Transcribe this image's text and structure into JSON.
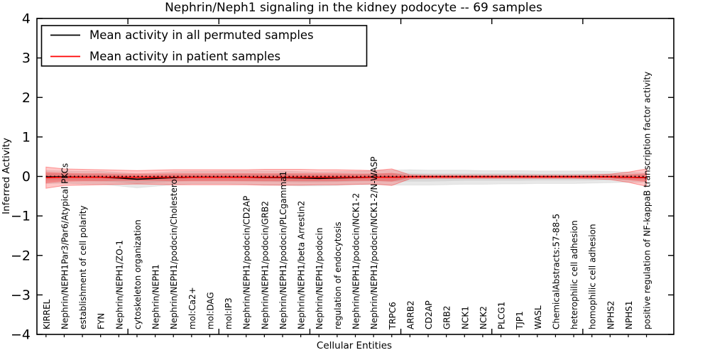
{
  "chart_data": {
    "type": "line",
    "title": "Nephrin/Neph1 signaling in the kidney podocyte -- 69 samples",
    "xlabel": "Cellular Entities",
    "ylabel": "Inferred Activity",
    "ylim": [
      -4,
      4
    ],
    "yticks": [
      -4,
      -3,
      -2,
      -1,
      0,
      1,
      2,
      3,
      4
    ],
    "xlim": [
      0,
      35
    ],
    "xticks_major": [
      5,
      10,
      15,
      20,
      25,
      30
    ],
    "grid": false,
    "legend_position": "upper left",
    "categories": [
      "KIRREL",
      "Nephrin/NEPH1Par3/Par6/Atypical PKCs",
      "establishment of cell polarity",
      "FYN",
      "Nephrin/NEPH1/ZO-1",
      "cytoskeleton organization",
      "Nephrin/NEPH1",
      "Nephrin/NEPH1/podocin/Cholesterol",
      "mol:Ca2+",
      "mol:DAG",
      "mol:IP3",
      "Nephrin/NEPH1/podocin/CD2AP",
      "Nephrin/NEPH1/podocin/GRB2",
      "Nephrin/NEPH1/podocin/PLCgamma1",
      "Nephrin/NEPH1/beta Arrestin2",
      "Nephrin/NEPH1/podocin",
      "regulation of endocytosis",
      "Nephrin/NEPH1/podocin/NCK1-2",
      "Nephrin/NEPH1/podocin/NCK1-2/N-WASP",
      "TRPC6",
      "ARRB2",
      "CD2AP",
      "GRB2",
      "NCK1",
      "NCK2",
      "PLCG1",
      "TJP1",
      "WASL",
      "ChemicalAbstracts:57-88-5",
      "heterophilic cell adhesion",
      "homophilic cell adhesion",
      "NPHS2",
      "NPHS1",
      "positive regulation of NF-kappaB transcription factor activity"
    ],
    "series": [
      {
        "name": "Mean activity in all permuted samples",
        "color": "#000000",
        "style": "solid",
        "values": [
          -0.01,
          -0.01,
          -0.02,
          -0.02,
          -0.04,
          -0.07,
          -0.05,
          -0.03,
          -0.02,
          -0.02,
          -0.02,
          -0.02,
          -0.03,
          -0.03,
          -0.04,
          -0.05,
          -0.04,
          -0.03,
          -0.02,
          -0.02,
          -0.01,
          -0.01,
          -0.01,
          -0.01,
          -0.01,
          -0.01,
          -0.01,
          -0.01,
          -0.01,
          -0.01,
          -0.01,
          -0.01,
          -0.02,
          -0.03
        ]
      },
      {
        "name": "Mean activity in patient samples",
        "color": "#ff0000",
        "style": "solid",
        "values": [
          -0.03,
          -0.02,
          -0.02,
          -0.02,
          -0.02,
          -0.02,
          -0.02,
          -0.02,
          -0.02,
          -0.02,
          -0.02,
          -0.02,
          -0.02,
          -0.02,
          -0.02,
          -0.02,
          -0.02,
          -0.02,
          -0.02,
          -0.02,
          -0.01,
          -0.01,
          -0.01,
          -0.01,
          -0.01,
          -0.01,
          -0.01,
          -0.01,
          -0.01,
          -0.01,
          -0.01,
          -0.01,
          -0.02,
          -0.03
        ]
      }
    ],
    "zero_line": {
      "name": "zero-reference",
      "style": "dotted",
      "color": "#000000",
      "value": 0
    },
    "bands": [
      {
        "name": "permuted-spread-outer",
        "series": 0,
        "color": "rgba(0,0,0,0.09)",
        "edge": "rgba(0,0,0,0.06)",
        "upper_hw": [
          0.16,
          0.15,
          0.15,
          0.15,
          0.14,
          0.14,
          0.14,
          0.15,
          0.15,
          0.15,
          0.16,
          0.16,
          0.17,
          0.17,
          0.16,
          0.16,
          0.16,
          0.16,
          0.17,
          0.18,
          0.18,
          0.17,
          0.17,
          0.17,
          0.16,
          0.16,
          0.16,
          0.15,
          0.15,
          0.15,
          0.15,
          0.14,
          0.13,
          0.11
        ],
        "lower_hw": [
          0.17,
          0.16,
          0.17,
          0.18,
          0.2,
          0.22,
          0.2,
          0.18,
          0.17,
          0.17,
          0.17,
          0.18,
          0.19,
          0.2,
          0.2,
          0.19,
          0.19,
          0.18,
          0.19,
          0.2,
          0.21,
          0.21,
          0.2,
          0.19,
          0.19,
          0.18,
          0.18,
          0.17,
          0.17,
          0.17,
          0.16,
          0.15,
          0.13,
          0.11
        ]
      },
      {
        "name": "permuted-spread-inner",
        "series": 0,
        "color": "rgba(0,0,0,0.07)",
        "edge": "none",
        "upper_hw": [
          0.09,
          0.08,
          0.08,
          0.08,
          0.08,
          0.08,
          0.08,
          0.08,
          0.08,
          0.08,
          0.09,
          0.09,
          0.09,
          0.09,
          0.09,
          0.09,
          0.09,
          0.09,
          0.09,
          0.1,
          0.1,
          0.09,
          0.09,
          0.09,
          0.09,
          0.09,
          0.09,
          0.08,
          0.08,
          0.08,
          0.08,
          0.08,
          0.07,
          0.06
        ],
        "lower_hw": [
          0.09,
          0.09,
          0.09,
          0.1,
          0.11,
          0.12,
          0.11,
          0.1,
          0.09,
          0.09,
          0.09,
          0.1,
          0.1,
          0.11,
          0.11,
          0.1,
          0.1,
          0.1,
          0.1,
          0.11,
          0.12,
          0.12,
          0.11,
          0.1,
          0.1,
          0.1,
          0.1,
          0.09,
          0.09,
          0.09,
          0.09,
          0.08,
          0.07,
          0.06
        ]
      },
      {
        "name": "patient-spread-outer",
        "series": 1,
        "color": "rgba(255,0,0,0.22)",
        "edge": "rgba(255,0,0,0.35)",
        "upper_hw": [
          0.27,
          0.21,
          0.2,
          0.19,
          0.18,
          0.17,
          0.18,
          0.19,
          0.19,
          0.19,
          0.19,
          0.19,
          0.2,
          0.2,
          0.2,
          0.19,
          0.19,
          0.18,
          0.17,
          0.21,
          0.05,
          0.04,
          0.04,
          0.04,
          0.04,
          0.04,
          0.04,
          0.04,
          0.04,
          0.04,
          0.05,
          0.07,
          0.13,
          0.22
        ],
        "lower_hw": [
          0.27,
          0.21,
          0.2,
          0.19,
          0.18,
          0.17,
          0.18,
          0.19,
          0.19,
          0.19,
          0.19,
          0.19,
          0.2,
          0.2,
          0.2,
          0.19,
          0.19,
          0.18,
          0.17,
          0.21,
          0.05,
          0.04,
          0.04,
          0.04,
          0.04,
          0.04,
          0.04,
          0.04,
          0.04,
          0.04,
          0.05,
          0.07,
          0.13,
          0.22
        ]
      },
      {
        "name": "patient-spread-inner",
        "series": 1,
        "color": "rgba(255,0,0,0.25)",
        "edge": "none",
        "upper_hw": [
          0.14,
          0.11,
          0.1,
          0.1,
          0.09,
          0.09,
          0.09,
          0.1,
          0.1,
          0.1,
          0.1,
          0.1,
          0.1,
          0.1,
          0.1,
          0.1,
          0.1,
          0.09,
          0.09,
          0.11,
          0.03,
          0.02,
          0.02,
          0.02,
          0.02,
          0.02,
          0.02,
          0.02,
          0.02,
          0.02,
          0.03,
          0.04,
          0.07,
          0.11
        ],
        "lower_hw": [
          0.14,
          0.11,
          0.1,
          0.1,
          0.09,
          0.09,
          0.09,
          0.1,
          0.1,
          0.1,
          0.1,
          0.1,
          0.1,
          0.1,
          0.1,
          0.1,
          0.1,
          0.09,
          0.09,
          0.11,
          0.03,
          0.02,
          0.02,
          0.02,
          0.02,
          0.02,
          0.02,
          0.02,
          0.02,
          0.02,
          0.03,
          0.04,
          0.07,
          0.11
        ]
      }
    ]
  }
}
